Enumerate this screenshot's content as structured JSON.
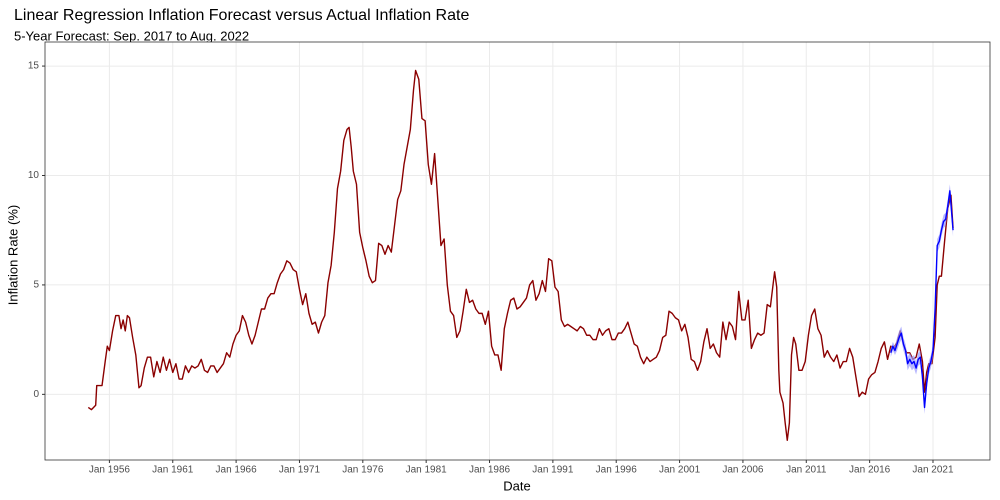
{
  "chart_data": {
    "type": "line",
    "title": "Linear Regression Inflation Forecast versus Actual Inflation Rate",
    "subtitle": "5-Year Forecast: Sep. 2017 to Aug. 2022",
    "x_label": "Date",
    "y_label": "Inflation Rate (%)",
    "xlim": [
      "1950-12",
      "2025-07"
    ],
    "ylim": [
      -3,
      16.1
    ],
    "xticks": [
      {
        "value": "1956-01",
        "label": "Jan 1956"
      },
      {
        "value": "1961-01",
        "label": "Jan 1961"
      },
      {
        "value": "1966-01",
        "label": "Jan 1966"
      },
      {
        "value": "1971-01",
        "label": "Jan 1971"
      },
      {
        "value": "1976-01",
        "label": "Jan 1976"
      },
      {
        "value": "1981-01",
        "label": "Jan 1981"
      },
      {
        "value": "1986-01",
        "label": "Jan 1986"
      },
      {
        "value": "1991-01",
        "label": "Jan 1991"
      },
      {
        "value": "1996-01",
        "label": "Jan 1996"
      },
      {
        "value": "2001-01",
        "label": "Jan 2001"
      },
      {
        "value": "2006-01",
        "label": "Jan 2006"
      },
      {
        "value": "2011-01",
        "label": "Jan 2011"
      },
      {
        "value": "2016-01",
        "label": "Jan 2016"
      },
      {
        "value": "2021-01",
        "label": "Jan 2021"
      }
    ],
    "yticks": [
      0,
      5,
      10,
      15
    ],
    "grid": true,
    "series": [
      {
        "color": "#8b0000",
        "x": [
          "1954-05",
          "1954-08",
          "1954-12",
          "1955-01",
          "1955-06",
          "1955-09",
          "1955-11",
          "1956-01",
          "1956-04",
          "1956-07",
          "1956-10",
          "1956-12",
          "1957-02",
          "1957-04",
          "1957-06",
          "1957-08",
          "1957-11",
          "1958-02",
          "1958-05",
          "1958-07",
          "1958-10",
          "1959-01",
          "1959-04",
          "1959-07",
          "1959-10",
          "1960-01",
          "1960-04",
          "1960-07",
          "1960-10",
          "1961-01",
          "1961-04",
          "1961-07",
          "1961-10",
          "1962-01",
          "1962-04",
          "1962-07",
          "1962-10",
          "1963-01",
          "1963-04",
          "1963-07",
          "1963-10",
          "1964-01",
          "1964-04",
          "1964-07",
          "1964-10",
          "1965-01",
          "1965-04",
          "1965-07",
          "1965-10",
          "1966-01",
          "1966-04",
          "1966-07",
          "1966-10",
          "1967-01",
          "1967-04",
          "1967-07",
          "1967-10",
          "1968-01",
          "1968-04",
          "1968-07",
          "1968-10",
          "1969-01",
          "1969-04",
          "1969-07",
          "1969-10",
          "1970-01",
          "1970-04",
          "1970-07",
          "1970-10",
          "1971-01",
          "1971-04",
          "1971-07",
          "1971-10",
          "1972-01",
          "1972-04",
          "1972-07",
          "1972-10",
          "1973-01",
          "1973-04",
          "1973-07",
          "1973-10",
          "1974-01",
          "1974-04",
          "1974-07",
          "1974-10",
          "1974-12",
          "1975-02",
          "1975-04",
          "1975-07",
          "1975-10",
          "1976-01",
          "1976-04",
          "1976-07",
          "1976-10",
          "1977-01",
          "1977-04",
          "1977-07",
          "1977-10",
          "1978-01",
          "1978-04",
          "1978-07",
          "1978-10",
          "1979-01",
          "1979-04",
          "1979-07",
          "1979-10",
          "1980-01",
          "1980-03",
          "1980-06",
          "1980-09",
          "1980-12",
          "1981-03",
          "1981-06",
          "1981-09",
          "1981-12",
          "1982-03",
          "1982-06",
          "1982-09",
          "1982-12",
          "1983-03",
          "1983-06",
          "1983-09",
          "1983-12",
          "1984-03",
          "1984-06",
          "1984-09",
          "1984-12",
          "1985-03",
          "1985-06",
          "1985-09",
          "1985-12",
          "1986-03",
          "1986-06",
          "1986-09",
          "1986-12",
          "1987-03",
          "1987-06",
          "1987-09",
          "1987-12",
          "1988-03",
          "1988-06",
          "1988-09",
          "1988-12",
          "1989-03",
          "1989-06",
          "1989-09",
          "1989-12",
          "1990-03",
          "1990-06",
          "1990-09",
          "1990-12",
          "1991-03",
          "1991-06",
          "1991-09",
          "1991-12",
          "1992-03",
          "1992-06",
          "1992-09",
          "1992-12",
          "1993-03",
          "1993-06",
          "1993-09",
          "1993-12",
          "1994-03",
          "1994-06",
          "1994-09",
          "1994-12",
          "1995-03",
          "1995-06",
          "1995-09",
          "1995-12",
          "1996-03",
          "1996-06",
          "1996-09",
          "1996-12",
          "1997-03",
          "1997-06",
          "1997-09",
          "1997-12",
          "1998-03",
          "1998-06",
          "1998-09",
          "1998-12",
          "1999-03",
          "1999-06",
          "1999-09",
          "1999-12",
          "2000-03",
          "2000-06",
          "2000-09",
          "2000-12",
          "2001-03",
          "2001-06",
          "2001-09",
          "2001-12",
          "2002-03",
          "2002-06",
          "2002-09",
          "2002-12",
          "2003-03",
          "2003-06",
          "2003-09",
          "2003-12",
          "2004-03",
          "2004-06",
          "2004-09",
          "2004-12",
          "2005-03",
          "2005-06",
          "2005-09",
          "2005-12",
          "2006-03",
          "2006-06",
          "2006-09",
          "2006-12",
          "2007-03",
          "2007-06",
          "2007-09",
          "2007-12",
          "2008-03",
          "2008-07",
          "2008-09",
          "2008-11",
          "2008-12",
          "2009-03",
          "2009-05",
          "2009-07",
          "2009-09",
          "2009-11",
          "2010-01",
          "2010-03",
          "2010-06",
          "2010-09",
          "2010-12",
          "2011-03",
          "2011-06",
          "2011-09",
          "2011-12",
          "2012-03",
          "2012-06",
          "2012-09",
          "2012-12",
          "2013-03",
          "2013-06",
          "2013-09",
          "2013-12",
          "2014-03",
          "2014-06",
          "2014-09",
          "2014-12",
          "2015-03",
          "2015-06",
          "2015-09",
          "2015-12",
          "2016-03",
          "2016-06",
          "2016-09",
          "2016-12",
          "2017-03",
          "2017-06",
          "2017-09",
          "2017-12",
          "2018-03",
          "2018-06",
          "2018-09",
          "2018-12",
          "2019-03",
          "2019-06",
          "2019-09",
          "2019-12",
          "2020-03",
          "2020-05",
          "2020-07",
          "2020-09",
          "2020-12",
          "2021-03",
          "2021-05",
          "2021-07",
          "2021-09",
          "2021-12",
          "2022-03",
          "2022-06",
          "2022-08"
        ],
        "values": [
          -0.6,
          -0.7,
          -0.5,
          0.4,
          0.4,
          1.5,
          2.2,
          2.0,
          2.9,
          3.6,
          3.6,
          3.0,
          3.4,
          2.9,
          3.6,
          3.5,
          2.6,
          1.8,
          0.3,
          0.4,
          1.2,
          1.7,
          1.7,
          0.8,
          1.5,
          1.0,
          1.7,
          1.1,
          1.6,
          1.0,
          1.4,
          0.7,
          0.7,
          1.3,
          1.0,
          1.3,
          1.2,
          1.3,
          1.6,
          1.1,
          1.0,
          1.3,
          1.3,
          1.0,
          1.2,
          1.4,
          1.9,
          1.7,
          2.3,
          2.7,
          2.9,
          3.6,
          3.3,
          2.7,
          2.3,
          2.7,
          3.3,
          3.9,
          3.9,
          4.4,
          4.6,
          4.6,
          5.1,
          5.5,
          5.7,
          6.1,
          6.0,
          5.7,
          5.6,
          4.8,
          4.1,
          4.6,
          3.7,
          3.2,
          3.3,
          2.8,
          3.3,
          3.6,
          5.1,
          5.9,
          7.4,
          9.4,
          10.2,
          11.6,
          12.1,
          12.2,
          11.3,
          10.2,
          9.6,
          7.4,
          6.7,
          6.1,
          5.4,
          5.1,
          5.2,
          6.9,
          6.8,
          6.4,
          6.8,
          6.5,
          7.7,
          8.9,
          9.3,
          10.5,
          11.3,
          12.1,
          13.9,
          14.8,
          14.4,
          12.6,
          12.5,
          10.5,
          9.6,
          11.0,
          8.9,
          6.8,
          7.1,
          5.0,
          3.8,
          3.6,
          2.6,
          2.9,
          3.8,
          4.8,
          4.2,
          4.3,
          3.9,
          3.7,
          3.7,
          3.2,
          3.8,
          2.2,
          1.8,
          1.8,
          1.1,
          3.0,
          3.7,
          4.3,
          4.4,
          3.9,
          4.0,
          4.2,
          4.4,
          5.0,
          5.2,
          4.3,
          4.6,
          5.2,
          4.7,
          6.2,
          6.1,
          4.9,
          4.7,
          3.4,
          3.1,
          3.2,
          3.1,
          3.0,
          2.9,
          3.1,
          3.0,
          2.7,
          2.7,
          2.5,
          2.5,
          3.0,
          2.7,
          2.9,
          3.0,
          2.5,
          2.5,
          2.8,
          2.8,
          3.0,
          3.3,
          2.8,
          2.3,
          2.2,
          1.7,
          1.4,
          1.7,
          1.5,
          1.6,
          1.7,
          2.0,
          2.6,
          2.7,
          3.8,
          3.7,
          3.5,
          3.4,
          2.9,
          3.2,
          2.6,
          1.6,
          1.5,
          1.1,
          1.5,
          2.4,
          3.0,
          2.1,
          2.3,
          1.9,
          1.7,
          3.3,
          2.5,
          3.3,
          3.1,
          2.5,
          4.7,
          3.4,
          3.4,
          4.3,
          2.1,
          2.5,
          2.8,
          2.7,
          2.8,
          4.1,
          4.0,
          5.6,
          4.9,
          1.1,
          0.1,
          -0.4,
          -1.3,
          -2.1,
          -1.3,
          1.8,
          2.6,
          2.3,
          1.1,
          1.1,
          1.5,
          2.7,
          3.6,
          3.9,
          3.0,
          2.7,
          1.7,
          2.0,
          1.7,
          1.5,
          1.8,
          1.2,
          1.5,
          1.5,
          2.1,
          1.7,
          0.8,
          -0.1,
          0.1,
          0.0,
          0.7,
          0.9,
          1.0,
          1.5,
          2.1,
          2.4,
          1.6,
          2.2,
          2.1,
          2.4,
          2.9,
          2.3,
          1.9,
          1.9,
          1.6,
          1.7,
          2.3,
          1.5,
          0.1,
          1.0,
          1.4,
          1.4,
          2.6,
          5.0,
          5.4,
          5.4,
          7.0,
          8.5,
          9.1,
          7.6
        ]
      },
      {
        "color": "#0000ff",
        "band_color": "#9a9aff",
        "x": [
          "2017-09",
          "2017-11",
          "2018-01",
          "2018-03",
          "2018-05",
          "2018-07",
          "2018-09",
          "2018-11",
          "2019-01",
          "2019-03",
          "2019-05",
          "2019-07",
          "2019-09",
          "2019-11",
          "2020-01",
          "2020-03",
          "2020-05",
          "2020-07",
          "2020-09",
          "2020-11",
          "2021-01",
          "2021-03",
          "2021-05",
          "2021-07",
          "2021-09",
          "2021-11",
          "2022-01",
          "2022-03",
          "2022-05",
          "2022-08"
        ],
        "values": [
          1.9,
          2.2,
          2.0,
          2.3,
          2.6,
          2.8,
          2.3,
          2.0,
          1.4,
          1.6,
          1.4,
          1.5,
          1.2,
          1.6,
          1.7,
          0.8,
          -0.6,
          0.5,
          1.2,
          1.5,
          2.0,
          3.9,
          6.8,
          7.0,
          7.5,
          7.9,
          8.0,
          8.6,
          9.3,
          7.5
        ],
        "lower": [
          1.7,
          2.0,
          1.8,
          2.0,
          2.3,
          2.5,
          2.0,
          1.7,
          1.1,
          1.3,
          1.1,
          1.2,
          0.9,
          1.3,
          1.4,
          0.5,
          -0.9,
          0.2,
          0.9,
          1.2,
          1.7,
          3.6,
          6.5,
          6.7,
          7.2,
          7.6,
          7.7,
          8.3,
          9.0,
          7.2
        ],
        "upper": [
          2.1,
          2.4,
          2.2,
          2.6,
          2.9,
          3.1,
          2.6,
          2.3,
          1.7,
          1.9,
          1.7,
          1.8,
          1.5,
          1.9,
          2.0,
          1.1,
          -0.3,
          0.8,
          1.5,
          1.8,
          2.3,
          4.2,
          7.1,
          7.3,
          7.8,
          8.2,
          8.3,
          8.9,
          9.6,
          7.8
        ]
      }
    ]
  }
}
